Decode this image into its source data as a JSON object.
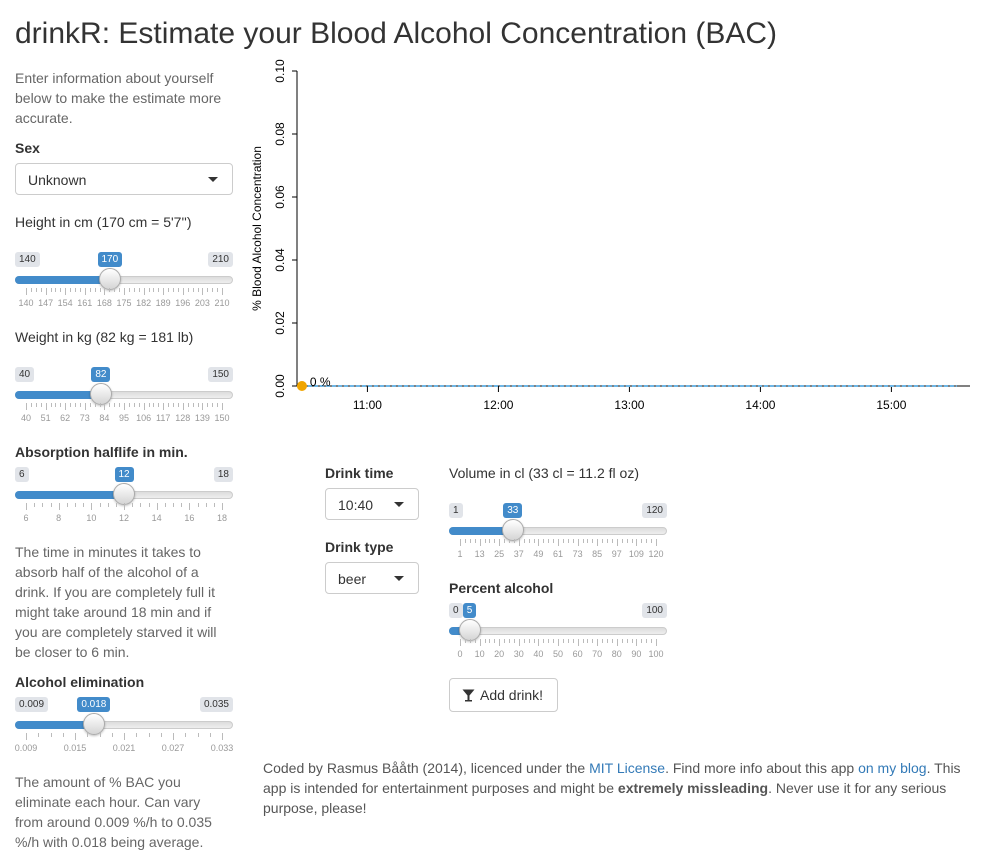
{
  "title": "drinkR: Estimate your Blood Alcohol Concentration (BAC)",
  "intro": "Enter information about yourself below to make the estimate more accurate.",
  "sex": {
    "label": "Sex",
    "value": "Unknown"
  },
  "height": {
    "label": "Height in cm (170 cm = 5'7'')",
    "min": "140",
    "max": "210",
    "current": "170",
    "min_value": 140,
    "max_value": 210,
    "value": 170,
    "ticks": [
      "140",
      "147",
      "154",
      "161",
      "168",
      "175",
      "182",
      "189",
      "196",
      "203",
      "210"
    ]
  },
  "weight": {
    "label": "Weight in kg (82 kg = 181 lb)",
    "min": "40",
    "max": "150",
    "current": "82",
    "min_value": 40,
    "max_value": 150,
    "value": 82,
    "ticks": [
      "40",
      "51",
      "62",
      "73",
      "84",
      "95",
      "106",
      "117",
      "128",
      "139",
      "150"
    ]
  },
  "absorption": {
    "label": "Absorption halflife in min.",
    "min": "6",
    "max": "18",
    "current": "12",
    "min_value": 6,
    "max_value": 18,
    "value": 12,
    "ticks": [
      "6",
      "8",
      "10",
      "12",
      "14",
      "16",
      "18"
    ],
    "help": "The time in minutes it takes to absorb half of the alcohol of a drink. If you are completely full it might take around 18 min and if you are completely starved it will be closer to 6 min."
  },
  "elimination": {
    "label": "Alcohol elimination",
    "min": "0.009",
    "max": "0.035",
    "current": "0.018",
    "min_value": 0.009,
    "max_value": 0.035,
    "value": 0.018,
    "ticks": [
      "0.009",
      "0.015",
      "0.021",
      "0.027",
      "0.033"
    ],
    "help": "The amount of % BAC you eliminate each hour. Can vary from around 0.009 %/h to 0.035 %/h with 0.018 being average."
  },
  "drink_time": {
    "label": "Drink time",
    "value": "10:40"
  },
  "drink_type": {
    "label": "Drink type",
    "value": "beer"
  },
  "volume": {
    "label": "Volume in cl (33 cl = 11.2 fl oz)",
    "min": "1",
    "max": "120",
    "current": "33",
    "min_value": 1,
    "max_value": 120,
    "value": 33,
    "ticks": [
      "1",
      "13",
      "25",
      "37",
      "49",
      "61",
      "73",
      "85",
      "97",
      "109",
      "120"
    ]
  },
  "percent": {
    "label": "Percent alcohol",
    "min": "0",
    "max": "100",
    "current": "5",
    "min_value": 0,
    "max_value": 100,
    "value": 5,
    "ticks": [
      "0",
      "10",
      "20",
      "30",
      "40",
      "50",
      "60",
      "70",
      "80",
      "90",
      "100"
    ]
  },
  "add_drink_label": "Add drink!",
  "footer": {
    "prefix": "Coded by Rasmus Bååth (2014), licenced under the ",
    "license_link": "MIT License",
    "middle": ". Find more info about this app ",
    "blog_link": "on my blog",
    "line2_start": ". This app is intended for entertainment purposes and might be ",
    "strong": "extremely missleading",
    "line2_end": ". Never use it for any serious purpose, please!"
  },
  "chart_data": {
    "type": "line",
    "ylabel": "% Blood Alcohol Concentration",
    "xlabel": "",
    "x_ticks": [
      "11:00",
      "12:00",
      "13:00",
      "14:00",
      "15:00"
    ],
    "y_ticks": [
      "0.00",
      "0.02",
      "0.04",
      "0.06",
      "0.08",
      "0.10"
    ],
    "ylim": [
      0,
      0.1
    ],
    "xlim_hours": [
      10.47,
      15.6
    ],
    "series": [
      {
        "x_hours": [
          10.5,
          15.5
        ],
        "values": [
          0,
          0
        ]
      }
    ],
    "point": {
      "x_hours": 10.5,
      "value": 0,
      "label": "0 %"
    },
    "colors": {
      "line": "#6fb7e6",
      "point": "#f0a500"
    }
  }
}
